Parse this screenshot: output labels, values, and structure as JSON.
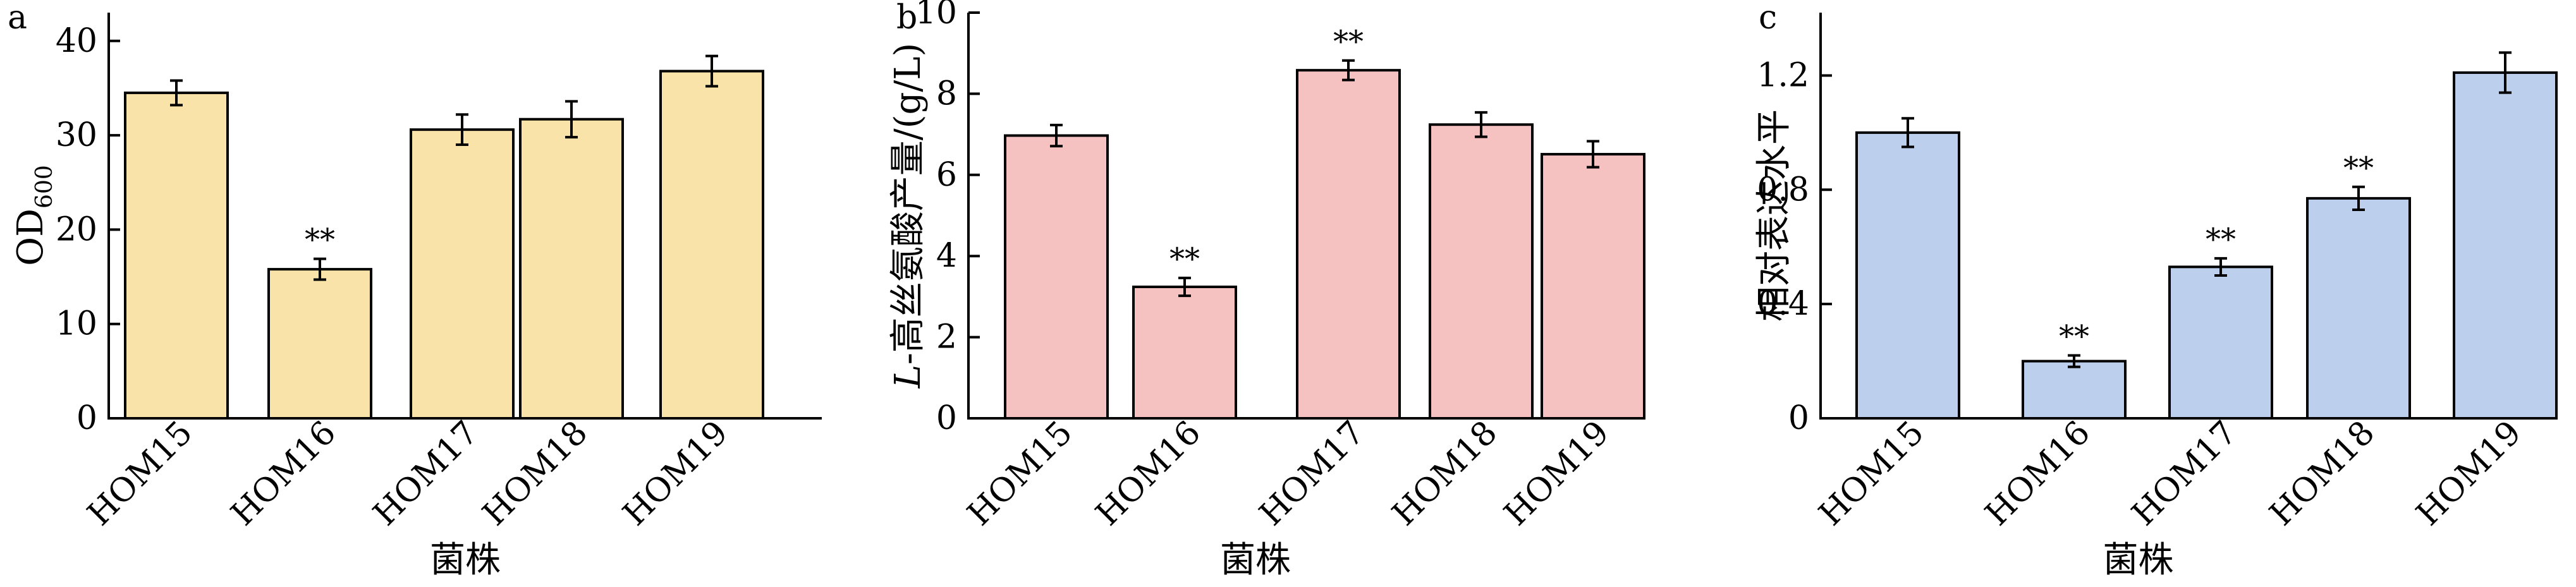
{
  "chart_data": [
    {
      "type": "bar",
      "panel_label": "a",
      "title": "",
      "xlabel": "菌株",
      "ylabel": {
        "main": "OD",
        "sub": "600"
      },
      "ylim": [
        0,
        43
      ],
      "yticks": [
        0,
        10,
        20,
        30,
        40
      ],
      "bar_color": "#f9e3a9",
      "categories": [
        "HOM15",
        "HOM16",
        "HOM17",
        "HOM18",
        "HOM19"
      ],
      "values": [
        34.5,
        15.8,
        30.6,
        31.7,
        36.8
      ],
      "errors": [
        1.3,
        1.1,
        1.6,
        1.9,
        1.6
      ],
      "significance": [
        "",
        "**",
        "",
        "",
        ""
      ]
    },
    {
      "type": "bar",
      "panel_label": "b",
      "title": "",
      "xlabel": "菌株",
      "ylabel": {
        "italic": "L",
        "rest": "-高丝氨酸产量/(g/L)"
      },
      "ylim": [
        0,
        10
      ],
      "yticks": [
        0,
        2,
        4,
        6,
        8,
        10
      ],
      "bar_color": "#f5c1c1",
      "categories": [
        "HOM15",
        "HOM16",
        "HOM17",
        "HOM18",
        "HOM19"
      ],
      "values": [
        6.97,
        3.24,
        8.58,
        7.24,
        6.51
      ],
      "errors": [
        0.26,
        0.22,
        0.24,
        0.3,
        0.32
      ],
      "significance": [
        "",
        "**",
        "**",
        "",
        ""
      ]
    },
    {
      "type": "bar",
      "panel_label": "c",
      "title": "",
      "xlabel": "菌株",
      "ylabel": {
        "main": "相对表达水平"
      },
      "ylim": [
        0,
        1.42
      ],
      "yticks": [
        0,
        0.4,
        0.8,
        1.2
      ],
      "ytick_labels": [
        "0",
        "0.4",
        "0.8",
        "1.2"
      ],
      "bar_color": "#bcd0ed",
      "categories": [
        "HOM15",
        "HOM16",
        "HOM17",
        "HOM18",
        "HOM19"
      ],
      "values": [
        1.0,
        0.2,
        0.53,
        0.77,
        1.21
      ],
      "errors": [
        0.05,
        0.02,
        0.03,
        0.04,
        0.07
      ],
      "significance": [
        "",
        "**",
        "**",
        "**",
        ""
      ]
    }
  ]
}
